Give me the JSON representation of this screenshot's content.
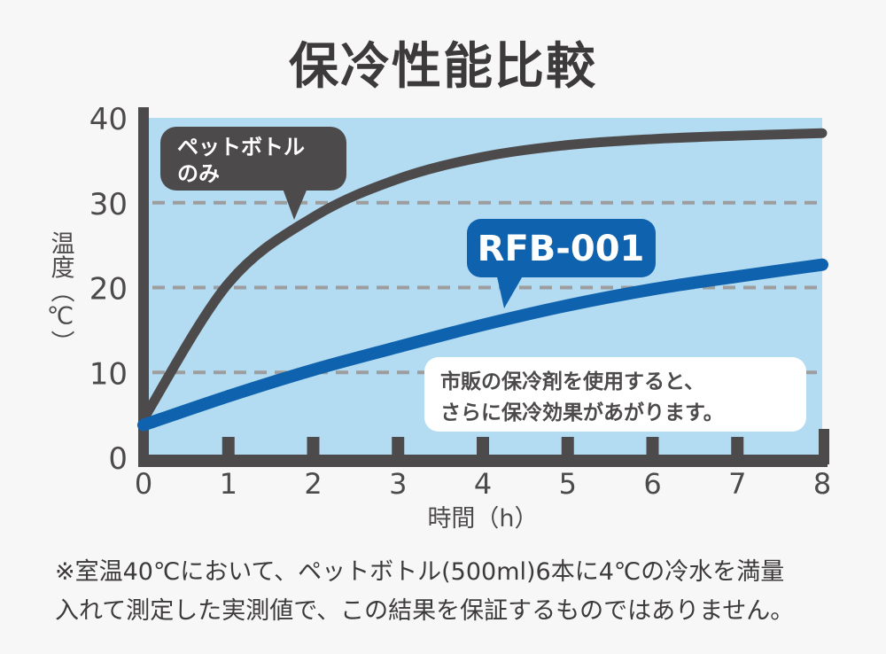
{
  "title": "保冷性能比較",
  "colors": {
    "background": "#f7f7f7",
    "plot_area": "#b3dcf2",
    "axis": "#4d4a4b",
    "pet_line": "#4d4a4b",
    "rfb_line": "#0f62ae",
    "grid": "#9d9d9d",
    "callout_text": "#ffffff"
  },
  "chart_data": {
    "type": "line",
    "title": "保冷性能比較",
    "xlabel": "時間（h）",
    "ylabel": "温度（℃）",
    "x": [
      0,
      1,
      2,
      3,
      4,
      5,
      6,
      7,
      8
    ],
    "xlim": [
      0,
      8
    ],
    "ylim": [
      0,
      40
    ],
    "x_ticks": [
      "0",
      "1",
      "2",
      "3",
      "4",
      "5",
      "6",
      "7",
      "8"
    ],
    "y_ticks": [
      "0",
      "10",
      "20",
      "30",
      "40"
    ],
    "grid": "horizontal dashed at 10, 20, 30",
    "series": [
      {
        "name": "ペットボトルのみ",
        "values": [
          4.5,
          20.5,
          28.3,
          32.8,
          35.4,
          36.8,
          37.5,
          37.9,
          38.2
        ]
      },
      {
        "name": "RFB-001",
        "values": [
          3.8,
          7.2,
          10.3,
          13.0,
          15.6,
          17.9,
          19.8,
          21.3,
          22.7
        ]
      }
    ],
    "annotations": {
      "pet_label": [
        "ペットボトル",
        "のみ"
      ],
      "rfb_label": "RFB-001",
      "info_lines": [
        "市販の保冷剤を使用すると、",
        "さらに保冷効果があがります。"
      ]
    }
  },
  "footnote": [
    "※室温40℃において、ペットボトル(500ml)6本に4℃の冷水を満量",
    "入れて測定した実測値で、この結果を保証するものではありません。"
  ]
}
